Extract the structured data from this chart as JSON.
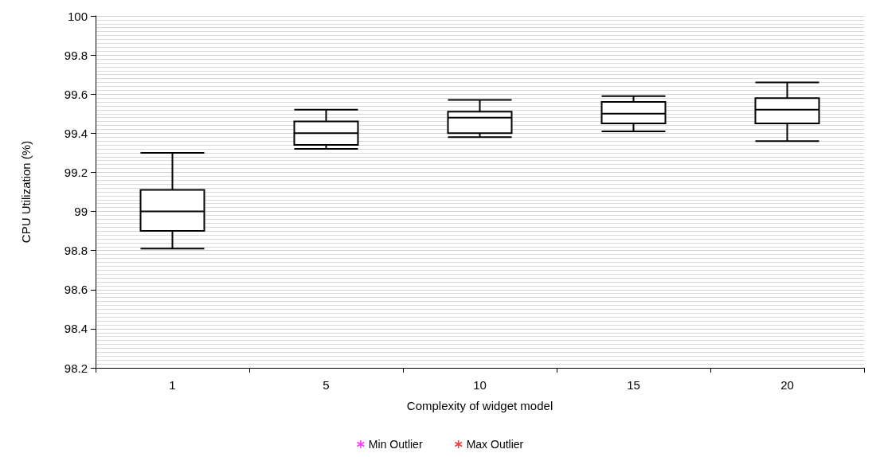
{
  "chart_data": {
    "type": "box",
    "xlabel": "Complexity of widget model",
    "ylabel": "CPU Utilization (%)",
    "categories": [
      "1",
      "5",
      "10",
      "15",
      "20"
    ],
    "boxes": [
      {
        "low": 98.81,
        "q1": 98.9,
        "median": 99.0,
        "q3": 99.11,
        "high": 99.3
      },
      {
        "low": 99.32,
        "q1": 99.34,
        "median": 99.4,
        "q3": 99.46,
        "high": 99.52
      },
      {
        "low": 99.38,
        "q1": 99.4,
        "median": 99.48,
        "q3": 99.51,
        "high": 99.57
      },
      {
        "low": 99.41,
        "q1": 99.45,
        "median": 99.5,
        "q3": 99.56,
        "high": 99.59
      },
      {
        "low": 99.36,
        "q1": 99.45,
        "median": 99.52,
        "q3": 99.58,
        "high": 99.66
      }
    ],
    "series": [
      {
        "name": "Min Outlier",
        "type": "scatter",
        "color": "#ff00ff",
        "marker": "star",
        "values": [
          null,
          null,
          null,
          null,
          null
        ]
      },
      {
        "name": "Max Outlier",
        "type": "scatter",
        "color": "#ff0000",
        "marker": "star",
        "values": [
          null,
          null,
          null,
          null,
          null
        ]
      }
    ],
    "ylim": [
      98.2,
      100
    ],
    "yticks": [
      98.2,
      98.4,
      98.6,
      98.8,
      99,
      99.2,
      99.4,
      99.6,
      99.8,
      100
    ],
    "grid": "y",
    "legend": "bottom"
  }
}
